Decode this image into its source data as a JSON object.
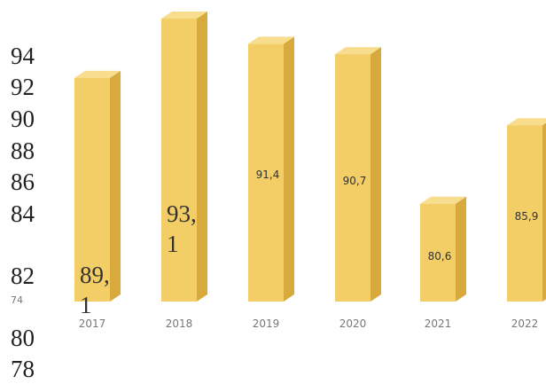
{
  "chart_data": {
    "type": "bar",
    "categories": [
      "2017",
      "2018",
      "2019",
      "2020",
      "2021",
      "2022"
    ],
    "values": [
      89.1,
      93.1,
      91.4,
      90.7,
      80.6,
      85.9
    ],
    "value_labels": [
      "89,1",
      "93,1",
      "91,4",
      "90,7",
      "80,6",
      "85,9"
    ],
    "color": "#f3cd66",
    "ylim": [
      74,
      94
    ],
    "yticks": [
      74
    ],
    "overlay_labels": [
      "94",
      "92",
      "90",
      "88",
      "86",
      "84",
      "82",
      "80",
      "78"
    ]
  }
}
